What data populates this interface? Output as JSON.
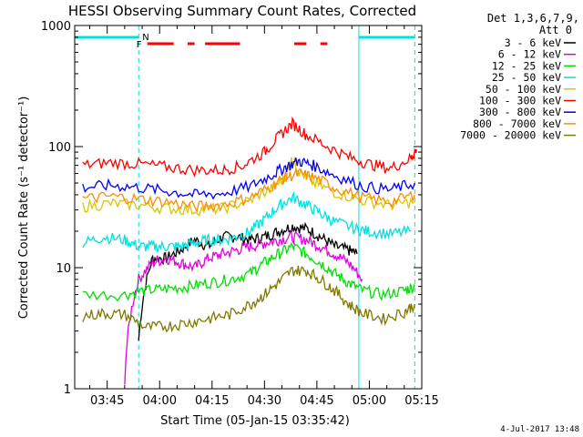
{
  "chart_data": {
    "type": "line",
    "title": "HESSI Observing Summary Count Rates, Corrected",
    "xlabel": "Start Time (05-Jan-15 03:35:42)",
    "ylabel": "Corrected Count Rate (s⁻¹ detector⁻¹)",
    "yscale": "log",
    "ylim": [
      1,
      1000
    ],
    "xlim_minutes": [
      35.7,
      135.0
    ],
    "x_tick_labels": [
      "03:45",
      "04:00",
      "04:15",
      "04:30",
      "04:45",
      "05:00",
      "05:15"
    ],
    "y_tick_labels": [
      "1",
      "10",
      "100",
      "1000"
    ],
    "legend_header": [
      "Det 1,3,6,7,9,",
      "Att 0"
    ],
    "timestamp": "4-Jul-2017 13:48",
    "flags": {
      "night_label": "N",
      "flare_label": "F",
      "night_color": "#00e0e0",
      "flare_color": "#ff0000",
      "night_intervals_min": [
        [
          35.7,
          54.0
        ],
        [
          117.0,
          133.0
        ]
      ],
      "flare_intervals_min": [
        [
          56.5,
          64.0
        ],
        [
          68.0,
          70.0
        ],
        [
          73.0,
          83.0
        ],
        [
          98.5,
          102.0
        ],
        [
          106.0,
          108.0
        ]
      ],
      "night_boundaries_min": [
        54.0,
        133.0
      ],
      "saa_boundary_min": 117.0
    },
    "series": [
      {
        "name": "3 - 6 keV",
        "color": "#000000",
        "x": [
          54,
          58,
          62,
          66,
          70,
          74,
          78,
          82,
          86,
          90,
          94,
          98,
          102,
          106,
          110,
          114,
          116.5
        ],
        "y": [
          2.5,
          12,
          12,
          14,
          17,
          15,
          18,
          18,
          17,
          18,
          20,
          22,
          21,
          18,
          15,
          14,
          13
        ]
      },
      {
        "name": "6 - 12 keV",
        "color": "#e000e0",
        "x": [
          50,
          54,
          58,
          62,
          66,
          70,
          74,
          78,
          82,
          86,
          90,
          94,
          98,
          102,
          106,
          110,
          114,
          118
        ],
        "y": [
          1.2,
          8,
          11,
          12,
          11,
          10,
          12,
          13,
          14,
          15,
          16,
          17,
          18,
          17,
          15,
          13,
          11,
          8
        ]
      },
      {
        "name": "12 - 25 keV",
        "color": "#00e000",
        "x": [
          38,
          50,
          56,
          62,
          68,
          74,
          80,
          86,
          90,
          94,
          98,
          102,
          106,
          110,
          114,
          118,
          124,
          130,
          133
        ],
        "y": [
          6,
          6,
          6.5,
          6.7,
          7,
          7.5,
          8,
          9,
          11,
          13,
          15,
          13,
          11,
          9,
          7.5,
          6.5,
          6,
          6.5,
          7
        ]
      },
      {
        "name": "25 - 50 keV",
        "color": "#00e0e0",
        "x": [
          38,
          44,
          50,
          54,
          58,
          62,
          66,
          70,
          74,
          78,
          82,
          86,
          90,
          94,
          98,
          102,
          106,
          110,
          116,
          120,
          126,
          132
        ],
        "y": [
          16,
          18,
          17,
          15,
          15,
          15,
          15,
          16,
          17,
          17,
          18,
          20,
          25,
          32,
          38,
          33,
          28,
          24,
          21,
          20,
          19,
          20
        ]
      },
      {
        "name": "50 - 100 keV",
        "color": "#d8c800",
        "x": [
          38,
          46,
          54,
          62,
          70,
          78,
          86,
          92,
          96,
          98,
          100,
          104,
          110,
          118,
          126,
          133
        ],
        "y": [
          32,
          34,
          33,
          31,
          30,
          31,
          36,
          45,
          55,
          80,
          62,
          50,
          42,
          36,
          33,
          35
        ]
      },
      {
        "name": "100 - 300 keV",
        "color": "#ff0000",
        "x": [
          38,
          46,
          54,
          62,
          70,
          78,
          84,
          90,
          94,
          98,
          102,
          108,
          114,
          120,
          126,
          132,
          133.5
        ],
        "y": [
          70,
          74,
          72,
          68,
          64,
          64,
          70,
          90,
          120,
          155,
          125,
          100,
          82,
          72,
          66,
          80,
          95
        ]
      },
      {
        "name": "300 - 800 keV",
        "color": "#0000ff",
        "x": [
          38,
          46,
          54,
          62,
          70,
          78,
          86,
          92,
          96,
          100,
          104,
          110,
          118,
          126,
          133
        ],
        "y": [
          46,
          48,
          46,
          43,
          40,
          41,
          47,
          58,
          68,
          76,
          70,
          58,
          47,
          44,
          50
        ]
      },
      {
        "name": "800 - 7000 keV",
        "color": "#ff8c00",
        "x": [
          38,
          46,
          54,
          62,
          70,
          78,
          86,
          92,
          96,
          100,
          104,
          110,
          118,
          126,
          133
        ],
        "y": [
          37,
          39,
          37,
          35,
          32,
          33,
          38,
          47,
          56,
          60,
          56,
          46,
          38,
          35,
          40
        ]
      },
      {
        "name": "7000 - 20000 keV",
        "color": "#807800",
        "x": [
          38,
          44,
          50,
          56,
          62,
          68,
          74,
          80,
          86,
          90,
          94,
          98,
          102,
          106,
          110,
          114,
          118,
          124,
          130,
          133
        ],
        "y": [
          4,
          4.2,
          4.1,
          3.2,
          3.3,
          3.5,
          3.8,
          4.1,
          5,
          6,
          7.5,
          9.5,
          9.5,
          8,
          6.5,
          5,
          4.2,
          3.8,
          4.3,
          5
        ]
      }
    ]
  }
}
